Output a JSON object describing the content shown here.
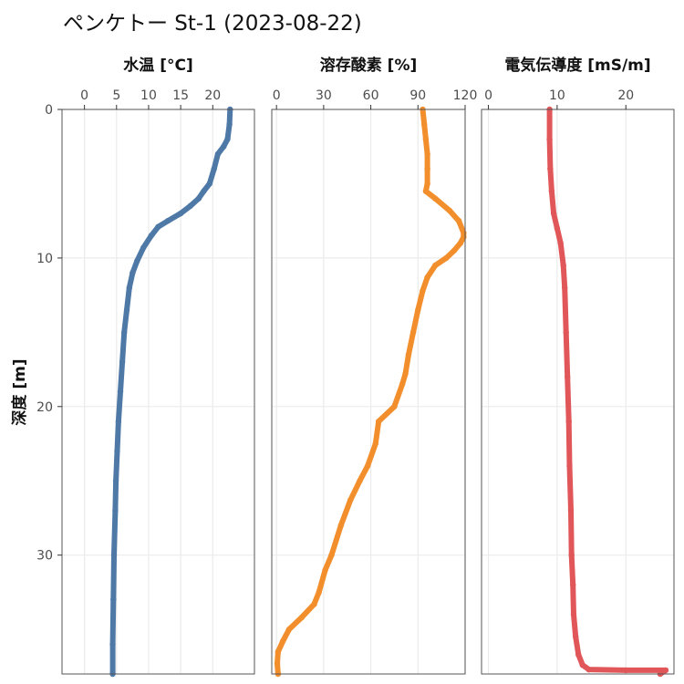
{
  "title": "ペンケトー St-1 (2023-08-22)",
  "colors": {
    "background": "#ffffff",
    "grid": "#ebebeb",
    "frame": "#555555",
    "tick": "#333333",
    "text": "#4d4d4d"
  },
  "chart_data": {
    "type": "line",
    "grid": true,
    "legend": "none",
    "y_axis": {
      "label": "深度 [m]",
      "reversed": true,
      "lim": [
        0,
        38
      ],
      "ticks": [
        0,
        10,
        20,
        30
      ]
    },
    "panels": [
      {
        "title": "水温 [°C]",
        "color": "#4e79a7",
        "xlim": [
          -3.5,
          26.5
        ],
        "xticks": [
          0,
          5,
          10,
          15,
          20
        ],
        "profile": [
          {
            "x": 22.7,
            "y": 0
          },
          {
            "x": 22.6,
            "y": 1.0
          },
          {
            "x": 22.3,
            "y": 2.0
          },
          {
            "x": 21.7,
            "y": 2.5
          },
          {
            "x": 20.8,
            "y": 3.0
          },
          {
            "x": 20.2,
            "y": 4.0
          },
          {
            "x": 19.5,
            "y": 5.0
          },
          {
            "x": 18.6,
            "y": 5.5
          },
          {
            "x": 17.8,
            "y": 6.0
          },
          {
            "x": 16.5,
            "y": 6.5
          },
          {
            "x": 15.0,
            "y": 7.0
          },
          {
            "x": 13.0,
            "y": 7.5
          },
          {
            "x": 11.5,
            "y": 7.9
          },
          {
            "x": 10.4,
            "y": 8.5
          },
          {
            "x": 9.2,
            "y": 9.3
          },
          {
            "x": 8.2,
            "y": 10.2
          },
          {
            "x": 7.5,
            "y": 11.0
          },
          {
            "x": 7.0,
            "y": 12.0
          },
          {
            "x": 6.6,
            "y": 13.5
          },
          {
            "x": 6.2,
            "y": 15.0
          },
          {
            "x": 5.9,
            "y": 17.0
          },
          {
            "x": 5.6,
            "y": 19.0
          },
          {
            "x": 5.3,
            "y": 21.0
          },
          {
            "x": 5.1,
            "y": 23.0
          },
          {
            "x": 4.9,
            "y": 25.0
          },
          {
            "x": 4.8,
            "y": 27.0
          },
          {
            "x": 4.6,
            "y": 30.0
          },
          {
            "x": 4.5,
            "y": 33.0
          },
          {
            "x": 4.4,
            "y": 36.0
          },
          {
            "x": 4.4,
            "y": 38.0
          }
        ]
      },
      {
        "title": "溶存酸素 [%]",
        "color": "#f28e2b",
        "xlim": [
          -3,
          120
        ],
        "xticks": [
          0,
          30,
          60,
          90,
          120
        ],
        "profile": [
          {
            "x": 93,
            "y": 0
          },
          {
            "x": 94,
            "y": 1.0
          },
          {
            "x": 95,
            "y": 2.0
          },
          {
            "x": 96,
            "y": 3.0
          },
          {
            "x": 96,
            "y": 4.0
          },
          {
            "x": 96,
            "y": 5.0
          },
          {
            "x": 95,
            "y": 5.5
          },
          {
            "x": 101,
            "y": 6.0
          },
          {
            "x": 110,
            "y": 6.8
          },
          {
            "x": 116,
            "y": 7.5
          },
          {
            "x": 119,
            "y": 8.3
          },
          {
            "x": 119,
            "y": 8.6
          },
          {
            "x": 117,
            "y": 9.0
          },
          {
            "x": 113,
            "y": 9.5
          },
          {
            "x": 108,
            "y": 10.0
          },
          {
            "x": 101,
            "y": 10.5
          },
          {
            "x": 96,
            "y": 11.3
          },
          {
            "x": 93,
            "y": 12.2
          },
          {
            "x": 90,
            "y": 13.5
          },
          {
            "x": 87,
            "y": 15.0
          },
          {
            "x": 84,
            "y": 16.5
          },
          {
            "x": 82,
            "y": 17.8
          },
          {
            "x": 80,
            "y": 18.5
          },
          {
            "x": 75,
            "y": 20.0
          },
          {
            "x": 65,
            "y": 21.0
          },
          {
            "x": 63,
            "y": 22.5
          },
          {
            "x": 58,
            "y": 24.0
          },
          {
            "x": 53,
            "y": 25.0
          },
          {
            "x": 47,
            "y": 26.3
          },
          {
            "x": 41,
            "y": 28.0
          },
          {
            "x": 35,
            "y": 30.0
          },
          {
            "x": 31,
            "y": 31.0
          },
          {
            "x": 27,
            "y": 32.5
          },
          {
            "x": 24,
            "y": 33.3
          },
          {
            "x": 16,
            "y": 34.2
          },
          {
            "x": 8,
            "y": 35.0
          },
          {
            "x": 4,
            "y": 35.8
          },
          {
            "x": 1,
            "y": 36.5
          },
          {
            "x": 0.5,
            "y": 37.3
          },
          {
            "x": 1,
            "y": 38.0
          }
        ]
      },
      {
        "title": "電気伝導度 [mS/m]",
        "color": "#e15759",
        "xlim": [
          -1,
          27
        ],
        "xticks": [
          0,
          10,
          20
        ],
        "profile": [
          {
            "x": 8.9,
            "y": 0
          },
          {
            "x": 8.9,
            "y": 2.0
          },
          {
            "x": 9.0,
            "y": 4.0
          },
          {
            "x": 9.2,
            "y": 5.5
          },
          {
            "x": 9.5,
            "y": 7.0
          },
          {
            "x": 10.0,
            "y": 8.0
          },
          {
            "x": 10.5,
            "y": 9.0
          },
          {
            "x": 10.9,
            "y": 10.5
          },
          {
            "x": 11.1,
            "y": 12.0
          },
          {
            "x": 11.3,
            "y": 15.0
          },
          {
            "x": 11.5,
            "y": 18.0
          },
          {
            "x": 11.7,
            "y": 21.0
          },
          {
            "x": 11.8,
            "y": 24.0
          },
          {
            "x": 12.0,
            "y": 27.0
          },
          {
            "x": 12.1,
            "y": 30.0
          },
          {
            "x": 12.3,
            "y": 32.0
          },
          {
            "x": 12.4,
            "y": 34.0
          },
          {
            "x": 12.7,
            "y": 35.5
          },
          {
            "x": 13.1,
            "y": 36.7
          },
          {
            "x": 13.7,
            "y": 37.4
          },
          {
            "x": 14.6,
            "y": 37.7
          },
          {
            "x": 20.0,
            "y": 37.75
          },
          {
            "x": 25.8,
            "y": 37.75
          },
          {
            "x": 25.0,
            "y": 38.0
          }
        ]
      }
    ]
  }
}
